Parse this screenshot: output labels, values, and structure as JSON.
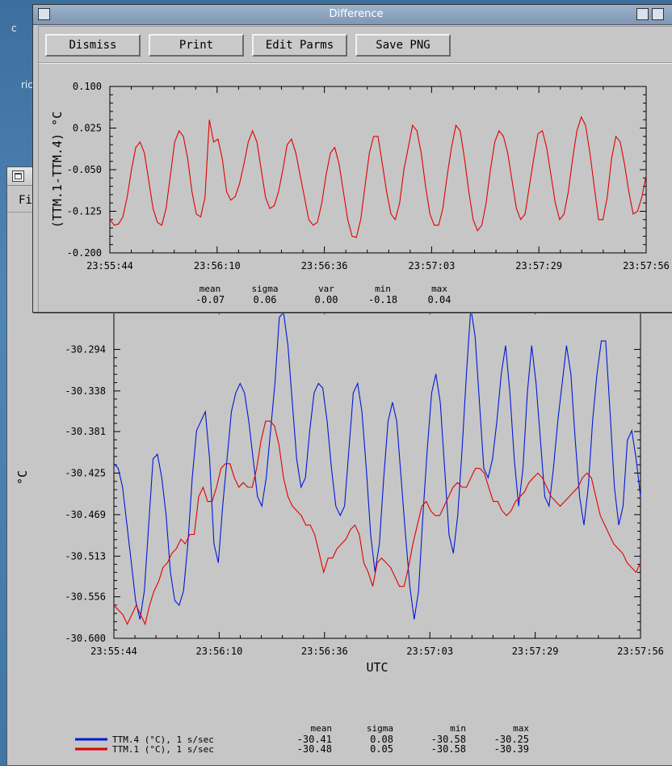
{
  "desktop": {
    "fragment_1": "c",
    "fragment_2": "ric"
  },
  "back_window": {
    "menu_file": "Fi"
  },
  "front_window": {
    "title": "Difference",
    "buttons": {
      "dismiss": "Dismiss",
      "print": "Print",
      "edit_parms": "Edit Parms",
      "save_png": "Save PNG"
    }
  },
  "colors": {
    "series_red": "#e00000",
    "series_blue": "#0018d8"
  },
  "chart_data": [
    {
      "type": "line",
      "ylabel": "(TTM.1-TTM.4) °C",
      "ylim": [
        -0.2,
        0.1
      ],
      "yticks": [
        "0.100",
        "0.025",
        "-0.050",
        "-0.125",
        "-0.200"
      ],
      "xticks": [
        "23:55:44",
        "23:56:10",
        "23:56:36",
        "23:57:03",
        "23:57:29",
        "23:57:56"
      ],
      "xlim_seconds": [
        0,
        132
      ],
      "series": [
        {
          "color": "#e00000",
          "values": [
            -0.14,
            -0.15,
            -0.148,
            -0.135,
            -0.1,
            -0.05,
            -0.01,
            0.0,
            -0.02,
            -0.07,
            -0.12,
            -0.145,
            -0.15,
            -0.12,
            -0.06,
            0.0,
            0.02,
            0.01,
            -0.03,
            -0.09,
            -0.13,
            -0.135,
            -0.1,
            0.04,
            0.0,
            0.005,
            -0.03,
            -0.09,
            -0.105,
            -0.098,
            -0.075,
            -0.04,
            0.0,
            0.02,
            0.0,
            -0.05,
            -0.1,
            -0.12,
            -0.115,
            -0.09,
            -0.05,
            -0.005,
            0.005,
            -0.02,
            -0.06,
            -0.1,
            -0.14,
            -0.15,
            -0.145,
            -0.11,
            -0.06,
            -0.02,
            -0.01,
            -0.04,
            -0.09,
            -0.14,
            -0.17,
            -0.172,
            -0.14,
            -0.08,
            -0.02,
            0.01,
            0.01,
            -0.04,
            -0.09,
            -0.13,
            -0.14,
            -0.11,
            -0.05,
            -0.01,
            0.03,
            0.02,
            -0.02,
            -0.08,
            -0.13,
            -0.15,
            -0.15,
            -0.12,
            -0.06,
            -0.01,
            0.03,
            0.02,
            -0.03,
            -0.09,
            -0.14,
            -0.16,
            -0.15,
            -0.11,
            -0.05,
            0.0,
            0.02,
            0.01,
            -0.02,
            -0.07,
            -0.12,
            -0.14,
            -0.13,
            -0.08,
            -0.03,
            0.015,
            0.02,
            -0.01,
            -0.06,
            -0.11,
            -0.14,
            -0.13,
            -0.09,
            -0.03,
            0.02,
            0.045,
            0.03,
            -0.02,
            -0.08,
            -0.14,
            -0.14,
            -0.1,
            -0.03,
            0.01,
            0.0,
            -0.04,
            -0.09,
            -0.13,
            -0.125,
            -0.1,
            -0.06
          ]
        }
      ],
      "stats": {
        "headers": [
          "mean",
          "sigma",
          "var",
          "min",
          "max"
        ],
        "values": [
          "-0.07",
          "0.06",
          "0.00",
          "-0.18",
          "0.04"
        ]
      }
    },
    {
      "type": "line",
      "xlabel": "UTC",
      "ylabel": "°C",
      "ylim": [
        -30.6,
        -30.25
      ],
      "yticks": [
        "-30.294",
        "-30.338",
        "-30.381",
        "-30.425",
        "-30.469",
        "-30.513",
        "-30.556",
        "-30.600"
      ],
      "xticks": [
        "23:55:44",
        "23:56:10",
        "23:56:36",
        "23:57:03",
        "23:57:29",
        "23:57:56"
      ],
      "xlim_seconds": [
        0,
        132
      ],
      "series": [
        {
          "name": "TTM.4 (°C), 1 s/sec",
          "color": "#0018d8",
          "values": [
            -30.415,
            -30.42,
            -30.44,
            -30.48,
            -30.52,
            -30.56,
            -30.58,
            -30.55,
            -30.48,
            -30.41,
            -30.405,
            -30.43,
            -30.47,
            -30.53,
            -30.56,
            -30.565,
            -30.55,
            -30.5,
            -30.43,
            -30.38,
            -30.37,
            -30.36,
            -30.41,
            -30.5,
            -30.52,
            -30.46,
            -30.41,
            -30.36,
            -30.34,
            -30.33,
            -30.34,
            -30.37,
            -30.41,
            -30.45,
            -30.46,
            -30.43,
            -30.38,
            -30.33,
            -30.26,
            -30.255,
            -30.29,
            -30.35,
            -30.41,
            -30.44,
            -30.43,
            -30.38,
            -30.34,
            -30.33,
            -30.335,
            -30.37,
            -30.42,
            -30.46,
            -30.47,
            -30.46,
            -30.4,
            -30.34,
            -30.33,
            -30.36,
            -30.42,
            -30.49,
            -30.53,
            -30.5,
            -30.43,
            -30.37,
            -30.35,
            -30.37,
            -30.43,
            -30.49,
            -30.545,
            -30.58,
            -30.55,
            -30.47,
            -30.4,
            -30.34,
            -30.32,
            -30.35,
            -30.42,
            -30.49,
            -30.51,
            -30.47,
            -30.4,
            -30.32,
            -30.25,
            -30.28,
            -30.35,
            -30.42,
            -30.43,
            -30.41,
            -30.37,
            -30.32,
            -30.29,
            -30.34,
            -30.41,
            -30.46,
            -30.42,
            -30.34,
            -30.29,
            -30.33,
            -30.39,
            -30.45,
            -30.46,
            -30.42,
            -30.37,
            -30.33,
            -30.29,
            -30.32,
            -30.39,
            -30.45,
            -30.48,
            -30.44,
            -30.37,
            -30.32,
            -30.285,
            -30.285,
            -30.36,
            -30.44,
            -30.48,
            -30.46,
            -30.39,
            -30.38,
            -30.41,
            -30.45
          ]
        },
        {
          "name": "TTM.1 (°C), 1 s/sec",
          "color": "#e00000",
          "values": [
            -30.565,
            -30.57,
            -30.575,
            -30.585,
            -30.575,
            -30.565,
            -30.575,
            -30.585,
            -30.565,
            -30.55,
            -30.54,
            -30.525,
            -30.52,
            -30.51,
            -30.505,
            -30.495,
            -30.5,
            -30.49,
            -30.49,
            -30.45,
            -30.44,
            -30.455,
            -30.455,
            -30.44,
            -30.42,
            -30.415,
            -30.415,
            -30.43,
            -30.44,
            -30.435,
            -30.44,
            -30.44,
            -30.42,
            -30.39,
            -30.37,
            -30.37,
            -30.375,
            -30.395,
            -30.43,
            -30.45,
            -30.46,
            -30.465,
            -30.47,
            -30.48,
            -30.48,
            -30.49,
            -30.51,
            -30.53,
            -30.515,
            -30.515,
            -30.505,
            -30.5,
            -30.495,
            -30.485,
            -30.48,
            -30.49,
            -30.52,
            -30.53,
            -30.545,
            -30.52,
            -30.515,
            -30.52,
            -30.525,
            -30.535,
            -30.545,
            -30.545,
            -30.525,
            -30.5,
            -30.48,
            -30.46,
            -30.455,
            -30.465,
            -30.47,
            -30.47,
            -30.46,
            -30.45,
            -30.44,
            -30.435,
            -30.44,
            -30.44,
            -30.43,
            -30.42,
            -30.42,
            -30.425,
            -30.44,
            -30.455,
            -30.455,
            -30.465,
            -30.47,
            -30.465,
            -30.455,
            -30.45,
            -30.445,
            -30.435,
            -30.43,
            -30.425,
            -30.43,
            -30.44,
            -30.45,
            -30.455,
            -30.46,
            -30.455,
            -30.45,
            -30.445,
            -30.44,
            -30.43,
            -30.425,
            -30.43,
            -30.45,
            -30.47,
            -30.48,
            -30.49,
            -30.5,
            -30.505,
            -30.51,
            -30.52,
            -30.525,
            -30.53,
            -30.52
          ]
        }
      ],
      "stats": {
        "headers": [
          "mean",
          "sigma",
          "min",
          "max"
        ],
        "rows": [
          [
            "-30.41",
            "0.08",
            "-30.58",
            "-30.25"
          ],
          [
            "-30.48",
            "0.05",
            "-30.58",
            "-30.39"
          ]
        ]
      }
    }
  ]
}
